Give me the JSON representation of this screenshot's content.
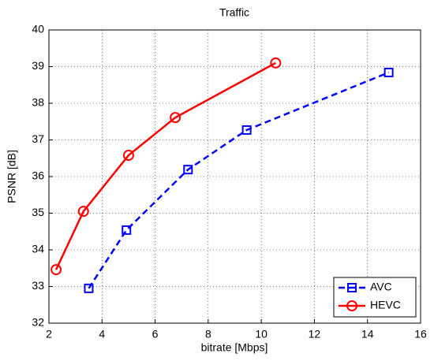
{
  "chart_data": {
    "type": "line",
    "title": "Traffic",
    "x_label": "bitrate [Mbps]",
    "y_label": "PSNR [dB]",
    "xlim": [
      2,
      16
    ],
    "xticks": [
      2,
      4,
      6,
      8,
      10,
      12,
      14,
      16
    ],
    "ylim": [
      32,
      40
    ],
    "yticks": [
      32,
      33,
      34,
      35,
      36,
      37,
      38,
      39,
      40
    ],
    "grid": true,
    "legend": "lower right",
    "series": [
      {
        "name": "AVC",
        "color": "#0000ff",
        "marker": "square",
        "line_style": "dashed",
        "x": [
          3.5,
          4.92,
          7.24,
          9.45,
          14.8
        ],
        "values": [
          32.95,
          34.54,
          36.19,
          37.27,
          38.84
        ]
      },
      {
        "name": "HEVC",
        "color": "#ff0000",
        "marker": "circle",
        "line_style": "solid",
        "x": [
          2.27,
          3.3,
          5.0,
          6.76,
          10.54
        ],
        "values": [
          33.46,
          35.05,
          36.58,
          37.61,
          39.1
        ]
      }
    ]
  }
}
